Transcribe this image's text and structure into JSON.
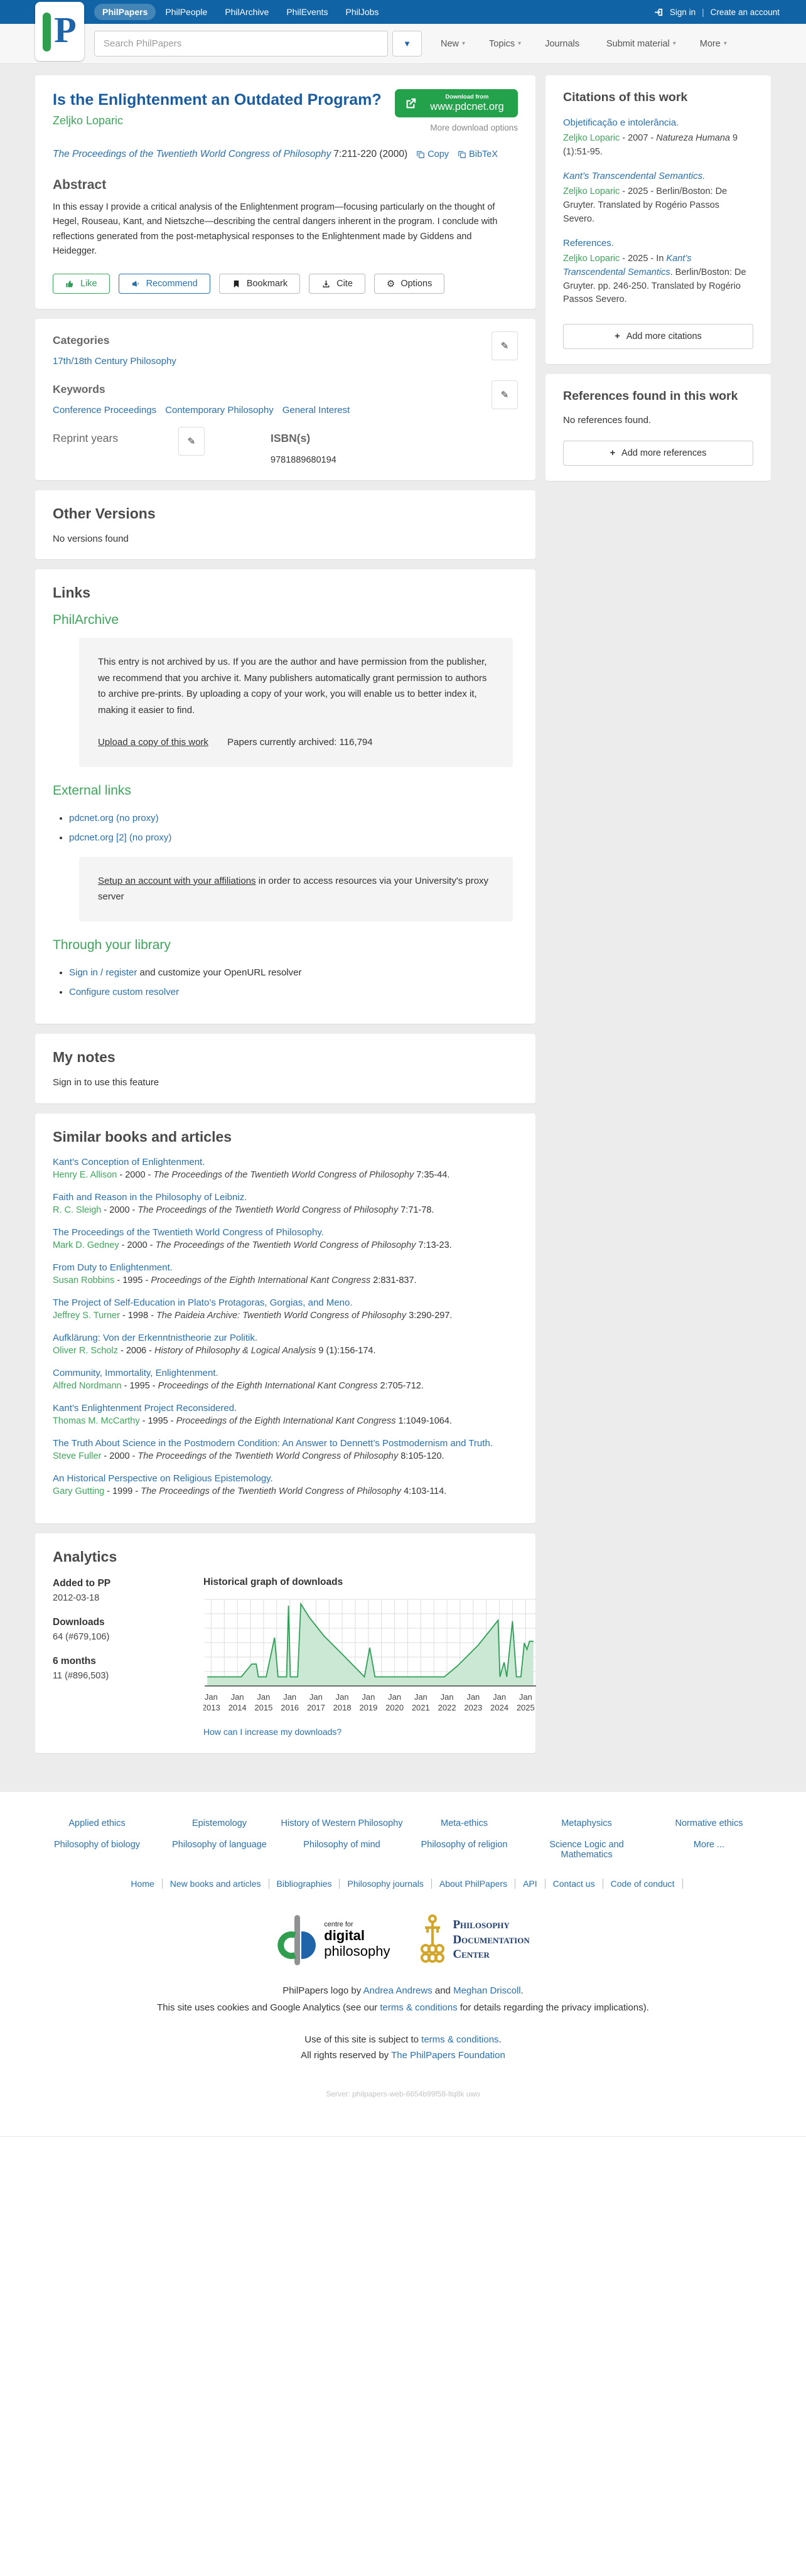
{
  "colors": {
    "blue-bar": "#1063a5",
    "link": "#2a70ad",
    "title-blue": "#1a5c9e",
    "green": "#3fa45c",
    "btn-green": "#23a24b",
    "chart-line": "#2f9e57",
    "chart-fill": "#cbe8d4"
  },
  "icons": {
    "pencil": "✎",
    "gear": "⚙",
    "caret_down": "▼",
    "caret_small": "▾",
    "plus": "+",
    "divider": "|"
  },
  "header": {
    "brand_letter": "P",
    "nav": [
      {
        "label": "PhilPapers",
        "active": true
      },
      {
        "label": "PhilPeople",
        "active": false
      },
      {
        "label": "PhilArchive",
        "active": false
      },
      {
        "label": "PhilEvents",
        "active": false
      },
      {
        "label": "PhilJobs",
        "active": false
      }
    ],
    "signin": "Sign in",
    "create_account": "Create an account",
    "search_placeholder": "Search PhilPapers",
    "menu": [
      {
        "label": "New",
        "caret": "▾"
      },
      {
        "label": "Topics",
        "caret": "▾"
      },
      {
        "label": "Journals",
        "caret": ""
      },
      {
        "label": "Submit material",
        "caret": "▾"
      },
      {
        "label": "More",
        "caret": "▾"
      }
    ]
  },
  "paper": {
    "title": "Is the Enlightenment an Outdated Program?",
    "author": "Zeljko Loparic",
    "journal": "The Proceedings of the Twentieth World Congress of Philosophy",
    "journal_detail": "7:211-220 (2000)",
    "copy_label": "Copy",
    "bibtex_label": "BibTeX",
    "download_small": "Download from",
    "download_site": "www.pdcnet.org",
    "more_download": "More download options",
    "abstract_heading": "Abstract",
    "abstract": "In this essay I provide a critical analysis of the Enlightenment program—focusing particularly on the thought of Hegel, Rouseau, Kant, and Nietszche—describing the central dangers inherent in the program. I conclude with reflections generated from the post-metaphysical responses to the Enlightenment made by Giddens and Heidegger.",
    "like_label": "Like",
    "recommend_label": "Recommend",
    "bookmark_label": "Bookmark",
    "cite_label": "Cite",
    "options_label": "Options"
  },
  "meta": {
    "categories_heading": "Categories",
    "categories": [
      "17th/18th Century Philosophy"
    ],
    "keywords_heading": "Keywords",
    "keywords": [
      "Conference Proceedings",
      "Contemporary Philosophy",
      "General Interest"
    ],
    "reprint_heading": "Reprint years",
    "isbn_heading": "ISBN(s)",
    "isbn": "9781889680194"
  },
  "other_versions": {
    "heading": "Other Versions",
    "empty": "No versions found"
  },
  "links": {
    "heading": "Links",
    "philarchive_heading": "PhilArchive",
    "archive_notice": "This entry is not archived by us. If you are the author and have permission from the publisher, we recommend that you archive it. Many publishers automatically grant permission to authors to archive pre-prints. By uploading a copy of your work, you will enable us to better index it, making it easier to find.",
    "upload_link": "Upload a copy of this work",
    "archived_count": "Papers currently archived: 116,794",
    "external_heading": "External links",
    "external": [
      {
        "label": "pdcnet.org (no proxy)"
      },
      {
        "label": "pdcnet.org [2] (no proxy)"
      }
    ],
    "proxy_link": "Setup an account with your affiliations",
    "proxy_rest": " in order to access resources via your University's proxy server",
    "library_heading": "Through your library",
    "library_items": [
      {
        "link": "Sign in / register",
        "rest": " and customize your OpenURL resolver"
      },
      {
        "link": "Configure custom resolver",
        "rest": ""
      }
    ]
  },
  "my_notes": {
    "heading": "My notes",
    "signin_link": "Sign in to use this feature"
  },
  "similar": {
    "heading": "Similar books and articles",
    "items": [
      {
        "title": "Kant’s Conception of Enlightenment.",
        "author": "Henry E. Allison",
        "mid": " - 2000 - ",
        "source": "The Proceedings of the Twentieth World Congress of Philosophy",
        "post": " 7:35-44."
      },
      {
        "title": "Faith and Reason in the Philosophy of Leibniz.",
        "author": "R. C. Sleigh",
        "mid": " - 2000 - ",
        "source": "The Proceedings of the Twentieth World Congress of Philosophy",
        "post": " 7:71-78."
      },
      {
        "title": "The Proceedings of the Twentieth World Congress of Philosophy.",
        "author": "Mark D. Gedney",
        "mid": " - 2000 - ",
        "source": "The Proceedings of the Twentieth World Congress of Philosophy",
        "post": " 7:13-23."
      },
      {
        "title": "From Duty to Enlightenment.",
        "author": "Susan Robbins",
        "mid": " - 1995 - ",
        "source": "Proceedings of the Eighth International Kant Congress",
        "post": " 2:831-837."
      },
      {
        "title": "The Project of Self-Education in Plato’s Protagoras, Gorgias, and Meno.",
        "author": "Jeffrey S. Turner",
        "mid": " - 1998 - ",
        "source": "The Paideia Archive: Twentieth World Congress of Philosophy",
        "post": " 3:290-297."
      },
      {
        "title": "Aufklärung: Von der Erkenntnistheorie zur Politik.",
        "author": "Oliver R. Scholz",
        "mid": " - 2006 - ",
        "source": "History of Philosophy & Logical Analysis",
        "post": " 9 (1):156-174."
      },
      {
        "title": "Community, Immortality, Enlightenment.",
        "author": "Alfred Nordmann",
        "mid": " - 1995 - ",
        "source": "Proceedings of the Eighth International Kant Congress",
        "post": " 2:705-712."
      },
      {
        "title": "Kant’s Enlightenment Project Reconsidered.",
        "author": "Thomas M. McCarthy",
        "mid": " - 1995 - ",
        "source": "Proceedings of the Eighth International Kant Congress",
        "post": " 1:1049-1064."
      },
      {
        "title": "The Truth About Science in the Postmodern Condition: An Answer to Dennett’s Postmodernism and Truth.",
        "author": "Steve Fuller",
        "mid": " - 2000 - ",
        "source": "The Proceedings of the Twentieth World Congress of Philosophy",
        "post": " 8:105-120."
      },
      {
        "title": "An Historical Perspective on Religious Epistemology.",
        "author": "Gary Gutting",
        "mid": " - 1999 - ",
        "source": "The Proceedings of the Twentieth World Congress of Philosophy",
        "post": " 4:103-114."
      }
    ]
  },
  "analytics": {
    "heading": "Analytics",
    "added_label": "Added to PP",
    "added_value": "2012-03-18",
    "downloads_label": "Downloads",
    "downloads_value": "64 (#679,106)",
    "six_label": "6 months",
    "six_value": "11 (#896,503)",
    "increase_link": "How can I increase my downloads?"
  },
  "chart_data": {
    "type": "area",
    "title": "Historical graph of downloads",
    "xlim": [
      2012.75,
      2025.4
    ],
    "ylim": [
      0,
      9.5
    ],
    "grid": true,
    "legend": "none",
    "line_color": "#2f9e57",
    "fill_color": "#cbe8d4",
    "x_ticks": [
      {
        "m": "Jan",
        "y": "2013",
        "x": 2013
      },
      {
        "m": "Jan",
        "y": "2014",
        "x": 2014
      },
      {
        "m": "Jan",
        "y": "2015",
        "x": 2015
      },
      {
        "m": "Jan",
        "y": "2016",
        "x": 2016
      },
      {
        "m": "Jan",
        "y": "2017",
        "x": 2017
      },
      {
        "m": "Jan",
        "y": "2018",
        "x": 2018
      },
      {
        "m": "Jan",
        "y": "2019",
        "x": 2019
      },
      {
        "m": "Jan",
        "y": "2020",
        "x": 2020
      },
      {
        "m": "Jan",
        "y": "2021",
        "x": 2021
      },
      {
        "m": "Jan",
        "y": "2022",
        "x": 2022
      },
      {
        "m": "Jan",
        "y": "2023",
        "x": 2023
      },
      {
        "m": "Jan",
        "y": "2024",
        "x": 2024
      },
      {
        "m": "Jan",
        "y": "2025",
        "x": 2025
      }
    ],
    "points": [
      [
        2012.85,
        1
      ],
      [
        2014.15,
        1
      ],
      [
        2014.55,
        2.4
      ],
      [
        2014.72,
        2.4
      ],
      [
        2014.8,
        1
      ],
      [
        2015.1,
        1
      ],
      [
        2015.42,
        5.3
      ],
      [
        2015.55,
        1
      ],
      [
        2015.88,
        1
      ],
      [
        2015.95,
        8.8
      ],
      [
        2016.02,
        1
      ],
      [
        2016.3,
        1
      ],
      [
        2016.42,
        9
      ],
      [
        2016.75,
        7.5
      ],
      [
        2017.3,
        5.5
      ],
      [
        2018.0,
        3.5
      ],
      [
        2018.85,
        1
      ],
      [
        2019.05,
        4.2
      ],
      [
        2019.25,
        1
      ],
      [
        2019.6,
        1
      ],
      [
        2021.9,
        1
      ],
      [
        2022.4,
        2.2
      ],
      [
        2023.2,
        4.5
      ],
      [
        2023.95,
        7.2
      ],
      [
        2024.02,
        1
      ],
      [
        2024.18,
        2.6
      ],
      [
        2024.28,
        1
      ],
      [
        2024.5,
        7.1
      ],
      [
        2024.65,
        1
      ],
      [
        2024.82,
        1
      ],
      [
        2024.95,
        4.7
      ],
      [
        2025.05,
        4
      ],
      [
        2025.15,
        4.9
      ],
      [
        2025.3,
        4.9
      ]
    ]
  },
  "citations": {
    "heading": "Citations of this work",
    "items": [
      {
        "title": "Objetificação e intolerância.",
        "title_italic": false,
        "author": "Zeljko Loparic",
        "mid": " - 2007 - ",
        "source": "Natureza Humana",
        "source_link": false,
        "post": " 9 (1):51-95."
      },
      {
        "title": "Kant’s Transcendental Semantics.",
        "title_italic": true,
        "author": "Zeljko Loparic",
        "mid": " - 2025 - ",
        "source": "",
        "source_link": false,
        "post": "Berlin/Boston: De Gruyter. Translated by Rogério Passos Severo."
      },
      {
        "title": "References.",
        "title_italic": false,
        "author": "Zeljko Loparic",
        "mid": " - 2025 - In ",
        "source": "Kant’s Transcendental Semantics",
        "source_link": true,
        "post": ". Berlin/Boston: De Gruyter. pp. 246-250. Translated by Rogério Passos Severo."
      }
    ],
    "add_button": "Add more citations"
  },
  "references": {
    "heading": "References found in this work",
    "empty": "No references found.",
    "add_button": "Add more references"
  },
  "footer": {
    "topics_row1": [
      "Applied ethics",
      "Epistemology",
      "History of Western Philosophy",
      "Meta-ethics",
      "Metaphysics",
      "Normative ethics"
    ],
    "topics_row2": [
      "Philosophy of biology",
      "Philosophy of language",
      "Philosophy of mind",
      "Philosophy of religion",
      "Science Logic and Mathematics",
      "More ..."
    ],
    "links": [
      "Home",
      "New books and articles",
      "Bibliographies",
      "Philosophy journals",
      "About PhilPapers",
      "API",
      "Contact us",
      "Code of conduct"
    ],
    "cdp_small": "centre for",
    "cdp_line1": "digital",
    "cdp_line2": "philosophy",
    "pdc_line1": "Philosophy",
    "pdc_line2": "Documentation",
    "pdc_line3": "Center",
    "credit_pre": "PhilPapers logo by ",
    "credit_link1": "Andrea Andrews",
    "credit_mid": " and ",
    "credit_link2": "Meghan Driscoll",
    "credit_post": ".",
    "cookies_pre": "This site uses cookies and Google Analytics (see our ",
    "cookies_link": "terms & conditions",
    "cookies_post": " for details regarding the privacy implications).",
    "terms_pre": "Use of this site is subject to ",
    "terms_link": "terms & conditions",
    "terms_post": ".",
    "rights_pre": "All rights reserved by ",
    "rights_link": "The PhilPapers Foundation",
    "server": "Server: philpapers-web-6654b99f58-ltq8k uwo"
  }
}
